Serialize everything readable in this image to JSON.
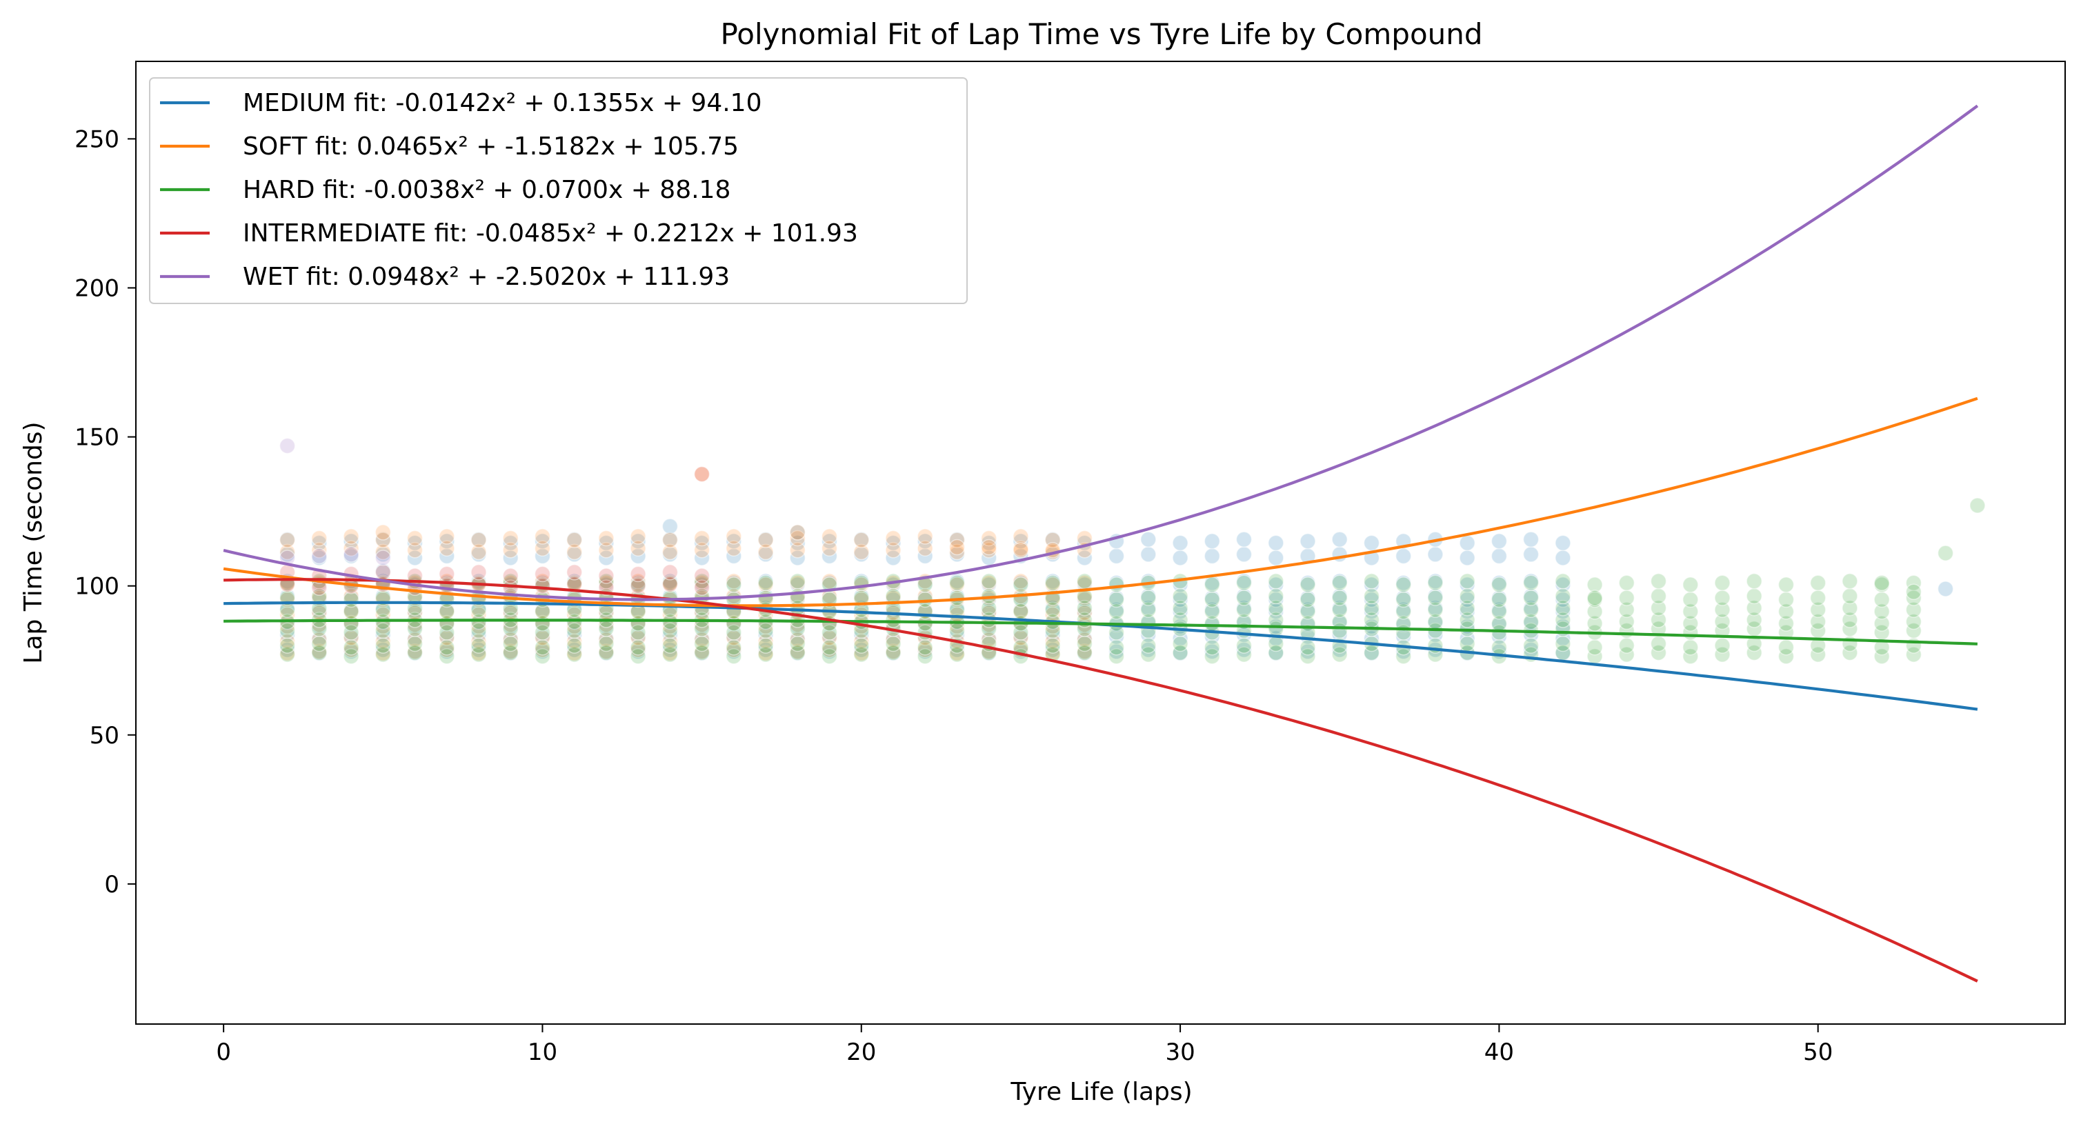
{
  "chart_data": {
    "type": "scatter",
    "title": "Polynomial Fit of Lap Time vs Tyre Life by Compound",
    "xlabel": "Tyre Life (laps)",
    "ylabel": "Lap Time (seconds)",
    "xlim": [
      -2.75,
      57.75
    ],
    "ylim": [
      -47,
      276
    ],
    "xticks": [
      0,
      10,
      20,
      30,
      40,
      50
    ],
    "yticks": [
      0,
      50,
      100,
      150,
      200,
      250
    ],
    "grid": false,
    "legend_position": "upper-left",
    "fit_x_range": [
      0,
      55
    ],
    "series": [
      {
        "name": "MEDIUM fit: -0.0142x² + 0.1355x + 94.10",
        "compound": "MEDIUM",
        "color": "#1f77b4",
        "coefficients": [
          -0.0142,
          0.1355,
          94.1
        ]
      },
      {
        "name": "SOFT fit: 0.0465x² + -1.5182x + 105.75",
        "compound": "SOFT",
        "color": "#ff7f0e",
        "coefficients": [
          0.0465,
          -1.5182,
          105.75
        ]
      },
      {
        "name": "HARD fit: -0.0038x² + 0.0700x + 88.18",
        "compound": "HARD",
        "color": "#2ca02c",
        "coefficients": [
          -0.0038,
          0.07,
          88.18
        ]
      },
      {
        "name": "INTERMEDIATE fit: -0.0485x² + 0.2212x + 101.93",
        "compound": "INTERMEDIATE",
        "color": "#d62728",
        "coefficients": [
          -0.0485,
          0.2212,
          101.93
        ]
      },
      {
        "name": "WET fit: 0.0948x² + -2.5020x + 111.93",
        "compound": "WET",
        "color": "#9467bd",
        "coefficients": [
          0.0948,
          -2.502,
          111.93
        ]
      }
    ],
    "scatter_points": {
      "point_opacity": 0.2,
      "groups": [
        {
          "compound": "MEDIUM",
          "color": "#1f77b4",
          "x_range": [
            2,
            42
          ],
          "y_levels": [
            78,
            83,
            87,
            92,
            96,
            101,
            110,
            115
          ],
          "points": [
            [
              14,
              120
            ],
            [
              5,
              105
            ],
            [
              18,
              118
            ],
            [
              54,
              99
            ]
          ]
        },
        {
          "compound": "SOFT",
          "color": "#ff7f0e",
          "x_range": [
            2,
            27
          ],
          "y_levels": [
            78,
            82,
            87,
            91,
            96,
            101,
            112,
            116
          ],
          "points": [
            [
              15,
              137.5
            ],
            [
              23,
              113
            ],
            [
              24,
              113
            ],
            [
              25,
              112
            ],
            [
              26,
              112
            ],
            [
              18,
              118
            ],
            [
              5,
              118
            ]
          ]
        },
        {
          "compound": "HARD",
          "color": "#2ca02c",
          "x_range": [
            2,
            53
          ],
          "y_levels": [
            77,
            80,
            85,
            88,
            92,
            96,
            101
          ],
          "points": [
            [
              55,
              127
            ],
            [
              54,
              111
            ],
            [
              43,
              96
            ],
            [
              52,
              101
            ],
            [
              53,
              98
            ]
          ]
        },
        {
          "compound": "INTERMEDIATE",
          "color": "#d62728",
          "x_range": [
            2,
            15
          ],
          "y_levels": [
            100,
            104
          ],
          "points": [
            [
              15,
              137.5
            ]
          ]
        },
        {
          "compound": "WET",
          "color": "#9467bd",
          "x_range": [
            2,
            5
          ],
          "y_levels": [
            110
          ],
          "points": [
            [
              2,
              147
            ]
          ]
        }
      ]
    }
  }
}
